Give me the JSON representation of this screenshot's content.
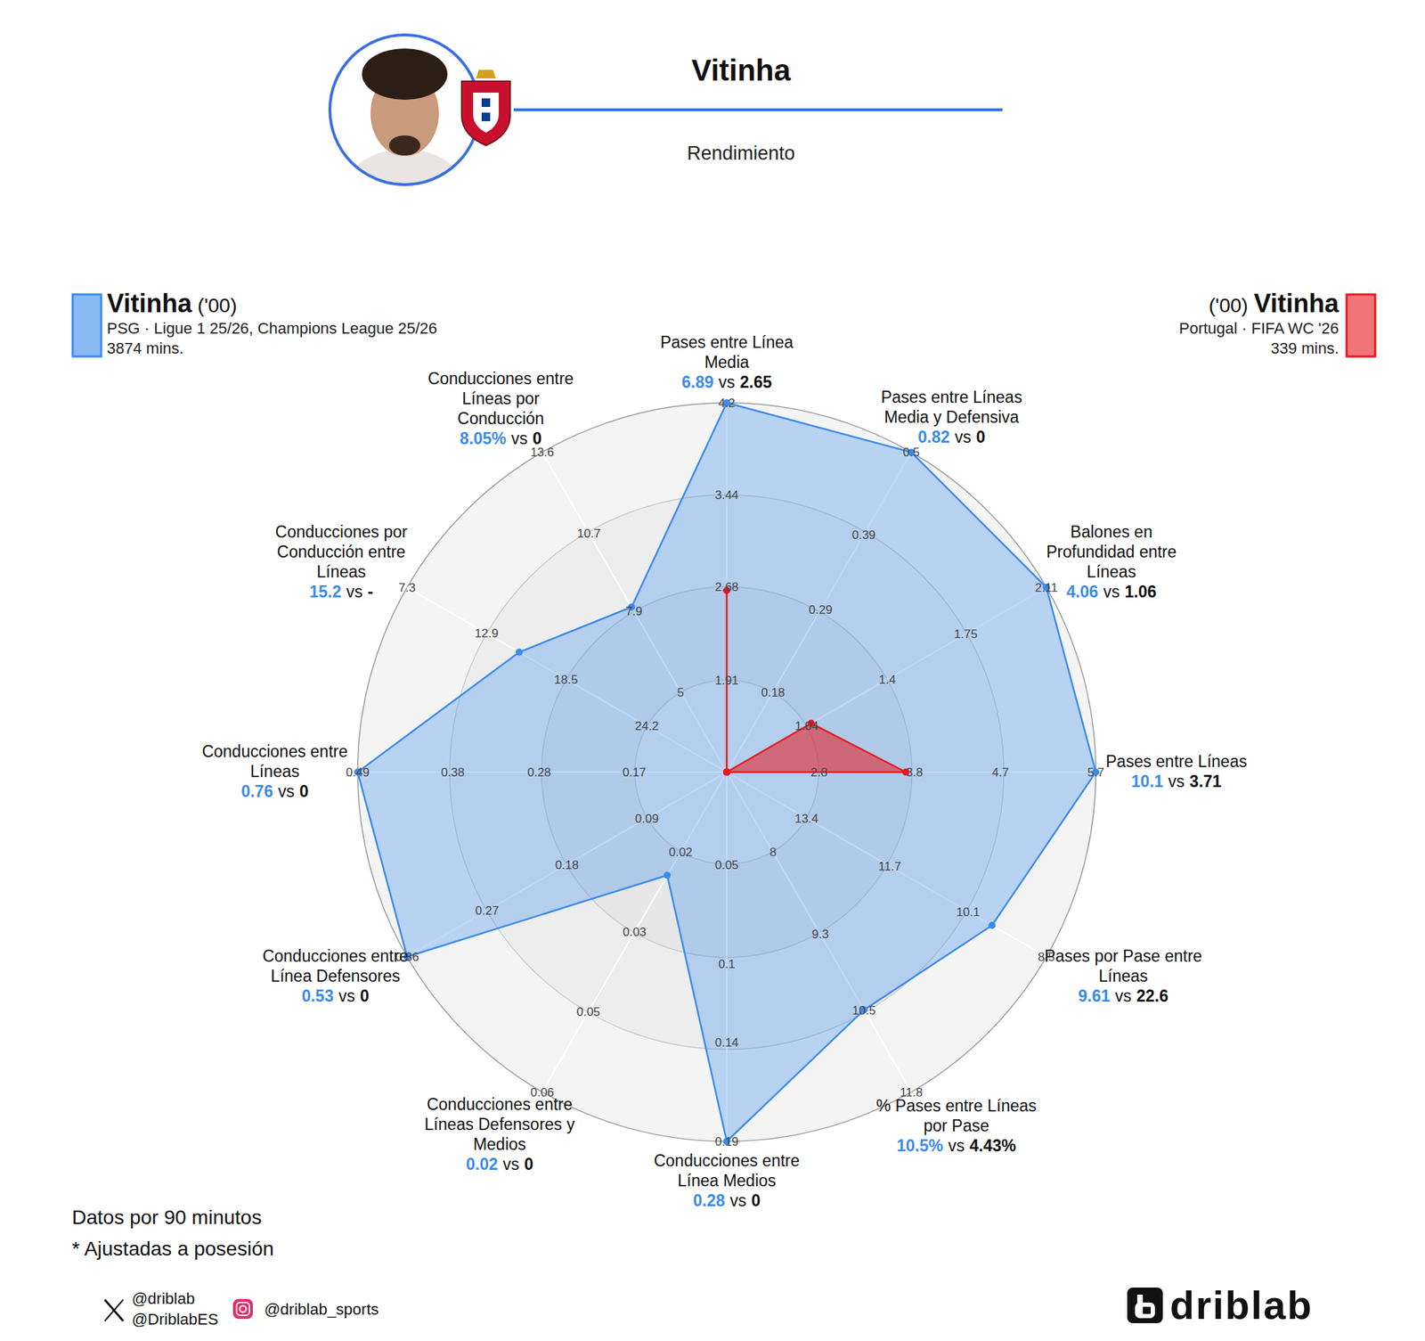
{
  "chart_data": {
    "type": "radar",
    "title": "Vitinha",
    "subtitle": "Rendimiento",
    "vs_text": "vs",
    "categories": [
      "Pases entre Línea Media",
      "Pases entre Líneas Media y Defensiva",
      "Balones en Profundidad entre Líneas",
      "Pases entre Líneas",
      "Pases por Pase entre Líneas",
      "% Pases entre Líneas por Pase",
      "Conducciones entre Línea Medios",
      "Conducciones entre Líneas Defensores y Medios",
      "Conducciones entre Línea Defensores",
      "Conducciones entre Líneas",
      "Conducciones por Conducción entre Líneas",
      "Conducciones entre Líneas por Conducción"
    ],
    "axes": [
      {
        "ylim": [
          1.15,
          4.2
        ],
        "yticks": [
          1.91,
          2.68,
          3.44,
          4.2
        ]
      },
      {
        "ylim": [
          0.073,
          0.5
        ],
        "yticks": [
          0.18,
          0.29,
          0.39,
          0.5
        ]
      },
      {
        "ylim": [
          0.683,
          2.11
        ],
        "yticks": [
          1.04,
          1.4,
          1.75,
          2.11
        ]
      },
      {
        "ylim": [
          1.833,
          5.7
        ],
        "yticks": [
          2.8,
          3.8,
          4.7,
          5.7
        ]
      },
      {
        "ylim": [
          15.03,
          8.5
        ],
        "yticks": [
          13.4,
          11.7,
          10.1,
          8.5
        ]
      },
      {
        "ylim": [
          6.73,
          11.8
        ],
        "yticks": [
          8,
          9.3,
          10.5,
          11.8
        ]
      },
      {
        "ylim": [
          0.003,
          0.19
        ],
        "yticks": [
          0.05,
          0.1,
          0.14,
          0.19
        ]
      },
      {
        "ylim": [
          0,
          0.062
        ],
        "yticks": [
          {
            "value": 0.0155,
            "label": "0.02"
          },
          {
            "value": 0.031,
            "label": "0.03"
          },
          {
            "value": 0.0465,
            "label": "0.05"
          },
          {
            "value": 0.062,
            "label": "0.06"
          }
        ]
      },
      {
        "ylim": [
          0,
          0.36
        ],
        "yticks": [
          0.09,
          0.18,
          0.27,
          0.36
        ]
      },
      {
        "ylim": [
          0.063,
          0.49
        ],
        "yticks": [
          0.17,
          0.28,
          0.38,
          0.49
        ]
      },
      {
        "ylim": [
          29.83,
          7.3
        ],
        "yticks": [
          24.2,
          18.5,
          12.9,
          7.3
        ]
      },
      {
        "ylim": [
          2.133,
          13.6
        ],
        "yticks": [
          5,
          7.9,
          10.7,
          13.6
        ]
      }
    ],
    "series": [
      {
        "name": "Vitinha",
        "number": "('00)",
        "team": "PSG · Ligue 1 25/26, Champions League 25/26",
        "minutes": "3874 mins.",
        "color": "#3b8beb",
        "values": [
          6.89,
          0.82,
          4.06,
          10.1,
          9.61,
          10.5,
          0.28,
          0.02,
          0.53,
          0.76,
          15.2,
          8.05
        ],
        "value_labels": [
          "6.89",
          "0.82",
          "4.06",
          "10.1",
          "9.61",
          "10.5%",
          "0.28",
          "0.02",
          "0.53",
          "0.76",
          "15.2",
          "8.05%"
        ]
      },
      {
        "name": "Vitinha",
        "number": "('00)",
        "team": "Portugal · FIFA WC '26",
        "minutes": "339 mins.",
        "color": "#e8181e",
        "values": [
          2.65,
          0,
          1.06,
          3.71,
          22.6,
          4.43,
          0,
          0,
          0,
          0,
          null,
          0
        ],
        "value_labels": [
          "2.65",
          "0",
          "1.06",
          "3.71",
          "22.6",
          "4.43%",
          "0",
          "0",
          "0",
          "0",
          "-",
          "0"
        ]
      }
    ],
    "notes": [
      "Datos por 90 minutos",
      "* Ajustadas a posesión"
    ],
    "social": {
      "x": [
        "@driblab",
        "@DriblabES"
      ],
      "instagram": "@driblab_sports"
    },
    "brand": "driblab"
  }
}
